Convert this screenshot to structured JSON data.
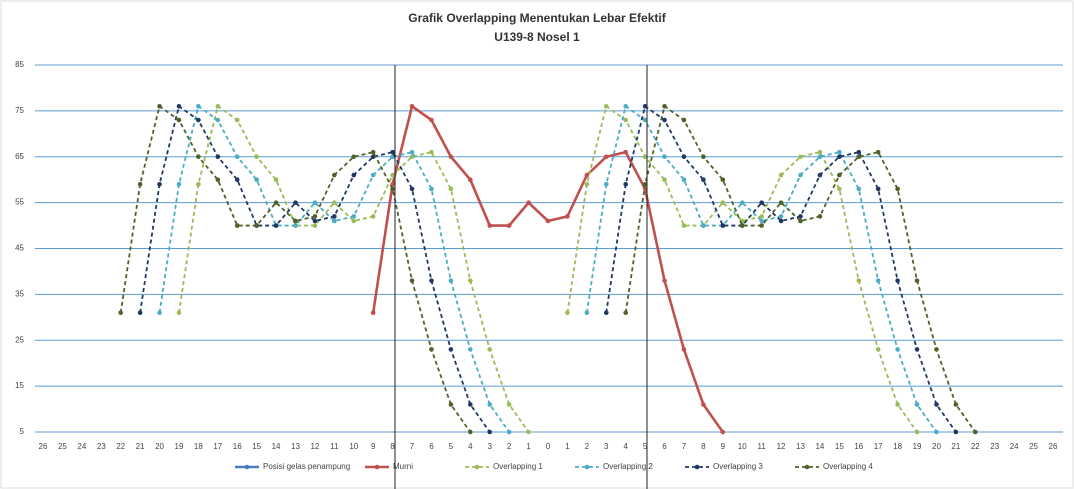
{
  "chart_data": {
    "type": "line",
    "title": "Grafik Overlapping Menentukan Lebar Efektif",
    "subtitle": "U139-8 Nosel 1",
    "categories": [
      "26",
      "25",
      "24",
      "23",
      "22",
      "21",
      "20",
      "19",
      "18",
      "17",
      "16",
      "15",
      "14",
      "13",
      "12",
      "11",
      "10",
      "9",
      "8",
      "7",
      "6",
      "5",
      "4",
      "3",
      "2",
      "1",
      "0",
      "1",
      "2",
      "3",
      "4",
      "5",
      "6",
      "7",
      "8",
      "9",
      "10",
      "11",
      "12",
      "13",
      "14",
      "15",
      "16",
      "17",
      "18",
      "19",
      "20",
      "21",
      "22",
      "23",
      "24",
      "25",
      "26"
    ],
    "ylim": [
      5,
      85
    ],
    "yticks": [
      5,
      15,
      25,
      35,
      45,
      55,
      65,
      75,
      85
    ],
    "grid": true,
    "series": [
      {
        "name": "Posisi gelas penampung",
        "color": "#4a7ebb",
        "dashed": false,
        "values": [
          null,
          null,
          null,
          null,
          null,
          null,
          null,
          null,
          null,
          null,
          null,
          null,
          null,
          null,
          null,
          null,
          null,
          null,
          null,
          null,
          null,
          null,
          null,
          null,
          null,
          null,
          null,
          null,
          null,
          null,
          null,
          null,
          null,
          null,
          null,
          null,
          null,
          null,
          null,
          null,
          null,
          null,
          null,
          null,
          null,
          null,
          null,
          null,
          null,
          null,
          null,
          null,
          null
        ]
      },
      {
        "name": "Murni",
        "color": "#c0504d",
        "dashed": false,
        "values": [
          null,
          null,
          null,
          null,
          null,
          null,
          null,
          null,
          null,
          null,
          null,
          null,
          null,
          null,
          null,
          null,
          null,
          31,
          59,
          76,
          73,
          65,
          60,
          50,
          50,
          55,
          51,
          52,
          61,
          65,
          66,
          58,
          38,
          23,
          11,
          5,
          null,
          null,
          null,
          null,
          null,
          null,
          null,
          null,
          null,
          null,
          null,
          null,
          null,
          null,
          null,
          null,
          null
        ]
      },
      {
        "name": "Overlapping 1",
        "color": "#9bbb59",
        "dashed": true,
        "values": [
          null,
          null,
          null,
          null,
          null,
          null,
          null,
          31,
          59,
          76,
          73,
          65,
          60,
          50,
          50,
          55,
          51,
          52,
          61,
          65,
          66,
          58,
          38,
          23,
          11,
          5,
          null,
          31,
          59,
          76,
          73,
          65,
          60,
          50,
          50,
          55,
          51,
          52,
          61,
          65,
          66,
          58,
          38,
          23,
          11,
          5,
          null,
          null,
          null,
          null,
          null,
          null,
          null
        ]
      },
      {
        "name": "Overlapping 2",
        "color": "#4bacc6",
        "dashed": true,
        "values": [
          null,
          null,
          null,
          null,
          null,
          null,
          31,
          59,
          76,
          73,
          65,
          60,
          50,
          50,
          55,
          51,
          52,
          61,
          65,
          66,
          58,
          38,
          23,
          11,
          5,
          null,
          null,
          null,
          31,
          59,
          76,
          73,
          65,
          60,
          50,
          50,
          55,
          51,
          52,
          61,
          65,
          66,
          58,
          38,
          23,
          11,
          5,
          null,
          null,
          null,
          null,
          null,
          null
        ]
      },
      {
        "name": "Overlapping 3",
        "color": "#1f3864",
        "dashed": true,
        "values": [
          null,
          null,
          null,
          null,
          null,
          31,
          59,
          76,
          73,
          65,
          60,
          50,
          50,
          55,
          51,
          52,
          61,
          65,
          66,
          58,
          38,
          23,
          11,
          5,
          null,
          null,
          null,
          null,
          null,
          31,
          59,
          76,
          73,
          65,
          60,
          50,
          50,
          55,
          51,
          52,
          61,
          65,
          66,
          58,
          38,
          23,
          11,
          5,
          null,
          null,
          null,
          null,
          null
        ]
      },
      {
        "name": "Overlapping 4",
        "color": "#4f6228",
        "dashed": true,
        "values": [
          null,
          null,
          null,
          null,
          31,
          59,
          76,
          73,
          65,
          60,
          50,
          50,
          55,
          51,
          52,
          61,
          65,
          66,
          58,
          38,
          23,
          11,
          5,
          null,
          null,
          null,
          null,
          null,
          null,
          null,
          31,
          59,
          76,
          73,
          65,
          60,
          50,
          50,
          55,
          51,
          52,
          61,
          65,
          66,
          58,
          38,
          23,
          11,
          5,
          null,
          null,
          null,
          null
        ]
      }
    ]
  }
}
